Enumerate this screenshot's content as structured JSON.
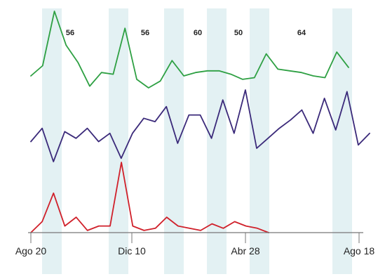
{
  "chart_data": {
    "type": "line",
    "title": "",
    "xlabel": "",
    "ylabel": "",
    "x_tick_labels": [
      "Ago 20",
      "Dic 10",
      "Abr 28",
      "Ago 18"
    ],
    "annotations": [
      "56",
      "56",
      "60",
      "50",
      "64"
    ],
    "grid": false,
    "legend": "none",
    "shaded_bands": 8,
    "series": [
      {
        "color": "#2ea043",
        "values": [
          62,
          68,
          100,
          80,
          70,
          56,
          64,
          63,
          90,
          60,
          55,
          59,
          71,
          62,
          64,
          65,
          65,
          63,
          60,
          61,
          75,
          66,
          65,
          64,
          62,
          61,
          76,
          67
        ]
      },
      {
        "color": "#3b2a7a",
        "values": [
          50,
          58,
          38,
          56,
          52,
          58,
          50,
          55,
          40,
          55,
          64,
          62,
          71,
          49,
          66,
          66,
          52,
          75,
          55,
          81,
          46,
          52,
          58,
          63,
          69,
          55,
          76,
          57,
          80,
          48,
          55
        ]
      },
      {
        "color": "#d0202a",
        "values": [
          0,
          5,
          18,
          3,
          7,
          1,
          3,
          3,
          32,
          3,
          1,
          2,
          7,
          3,
          2,
          1,
          4,
          2,
          5,
          3,
          2,
          0
        ]
      }
    ]
  }
}
